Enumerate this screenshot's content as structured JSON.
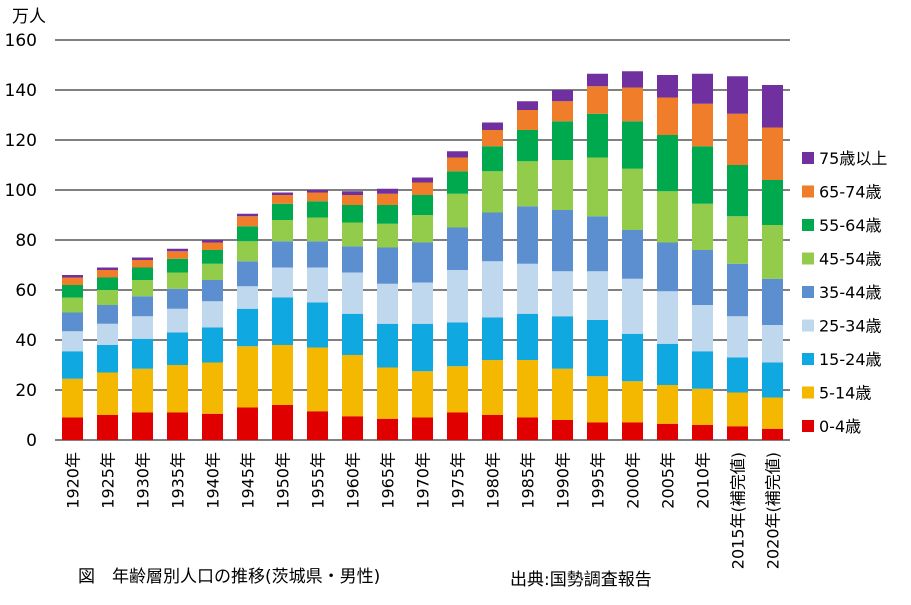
{
  "chart_data": {
    "type": "bar",
    "stacked": true,
    "title": "",
    "unit_label": "万人",
    "xlabel": "",
    "ylabel": "",
    "ylim": [
      0,
      160
    ],
    "yticks": [
      0,
      20,
      40,
      60,
      80,
      100,
      120,
      140,
      160
    ],
    "grid": "horizontal",
    "legend_position": "right",
    "categories": [
      "1920年",
      "1925年",
      "1930年",
      "1935年",
      "1940年",
      "1945年",
      "1950年",
      "1955年",
      "1960年",
      "1965年",
      "1970年",
      "1975年",
      "1980年",
      "1985年",
      "1990年",
      "1995年",
      "2000年",
      "2005年",
      "2010年",
      "2015年(補完値)",
      "2020年(補完値)"
    ],
    "series": [
      {
        "name": "0-4歳",
        "color": "#e00000",
        "values": [
          9,
          10,
          11,
          11,
          10.5,
          13,
          14,
          11.5,
          9.5,
          8.5,
          9,
          11,
          10,
          9,
          8,
          7,
          7,
          6.5,
          6,
          5.5,
          4.5
        ]
      },
      {
        "name": "5-14歳",
        "color": "#f5b800",
        "values": [
          15.5,
          17,
          17.5,
          19,
          20.5,
          24.5,
          24,
          25.5,
          24.5,
          20.5,
          18.5,
          18.5,
          22,
          23,
          20.5,
          18.5,
          16.5,
          15.5,
          14.5,
          13.5,
          12.5
        ]
      },
      {
        "name": "15-24歳",
        "color": "#10a8e0",
        "values": [
          11,
          11,
          12,
          13,
          14,
          15,
          19,
          18,
          16.5,
          17.5,
          19,
          17.5,
          17,
          18.5,
          21,
          22.5,
          19,
          16.5,
          15,
          14,
          14
        ]
      },
      {
        "name": "25-34歳",
        "color": "#c0d8ee",
        "values": [
          8,
          8.5,
          9,
          9.5,
          10.5,
          9,
          12,
          14,
          16.5,
          16,
          16.5,
          21,
          22.5,
          20,
          18,
          19.5,
          22,
          21,
          18.5,
          16.5,
          15
        ]
      },
      {
        "name": "35-44歳",
        "color": "#5b8fd0",
        "values": [
          7.5,
          7.5,
          8,
          8,
          8.5,
          10,
          10.5,
          10.5,
          10.5,
          14.5,
          16,
          17,
          19.5,
          23,
          24.5,
          22,
          19.5,
          19.5,
          22,
          21,
          18.5
        ]
      },
      {
        "name": "45-54歳",
        "color": "#92cc4a",
        "values": [
          6,
          6,
          6.5,
          6.5,
          6.5,
          8,
          8.5,
          9.5,
          9.5,
          9.5,
          11,
          13.5,
          16.5,
          18,
          20,
          23.5,
          24.5,
          20.5,
          18.5,
          19,
          21.5
        ]
      },
      {
        "name": "55-64歳",
        "color": "#00a84e",
        "values": [
          5,
          5,
          5,
          5.5,
          5.5,
          6,
          6.5,
          6.5,
          7,
          7.5,
          8,
          9,
          10,
          12.5,
          15.5,
          17.5,
          19,
          22.5,
          23,
          20.5,
          18
        ]
      },
      {
        "name": "65-74歳",
        "color": "#f07d2a",
        "values": [
          3,
          3,
          3,
          3,
          3,
          4,
          3.5,
          3.5,
          4,
          4.5,
          5,
          5.5,
          6.5,
          8,
          8,
          11,
          13.5,
          15,
          17,
          20.5,
          21
        ]
      },
      {
        "name": "75歳以上",
        "color": "#7030a0",
        "values": [
          1,
          1,
          1,
          1,
          1,
          1,
          1,
          1,
          1.5,
          2,
          2,
          2.5,
          3,
          3.5,
          4.5,
          5,
          6.5,
          9,
          12,
          15,
          17
        ]
      }
    ]
  },
  "caption": {
    "figure": "図　年齢層別人口の推移(茨城県・男性)",
    "source": "出典:国勢調査報告"
  }
}
